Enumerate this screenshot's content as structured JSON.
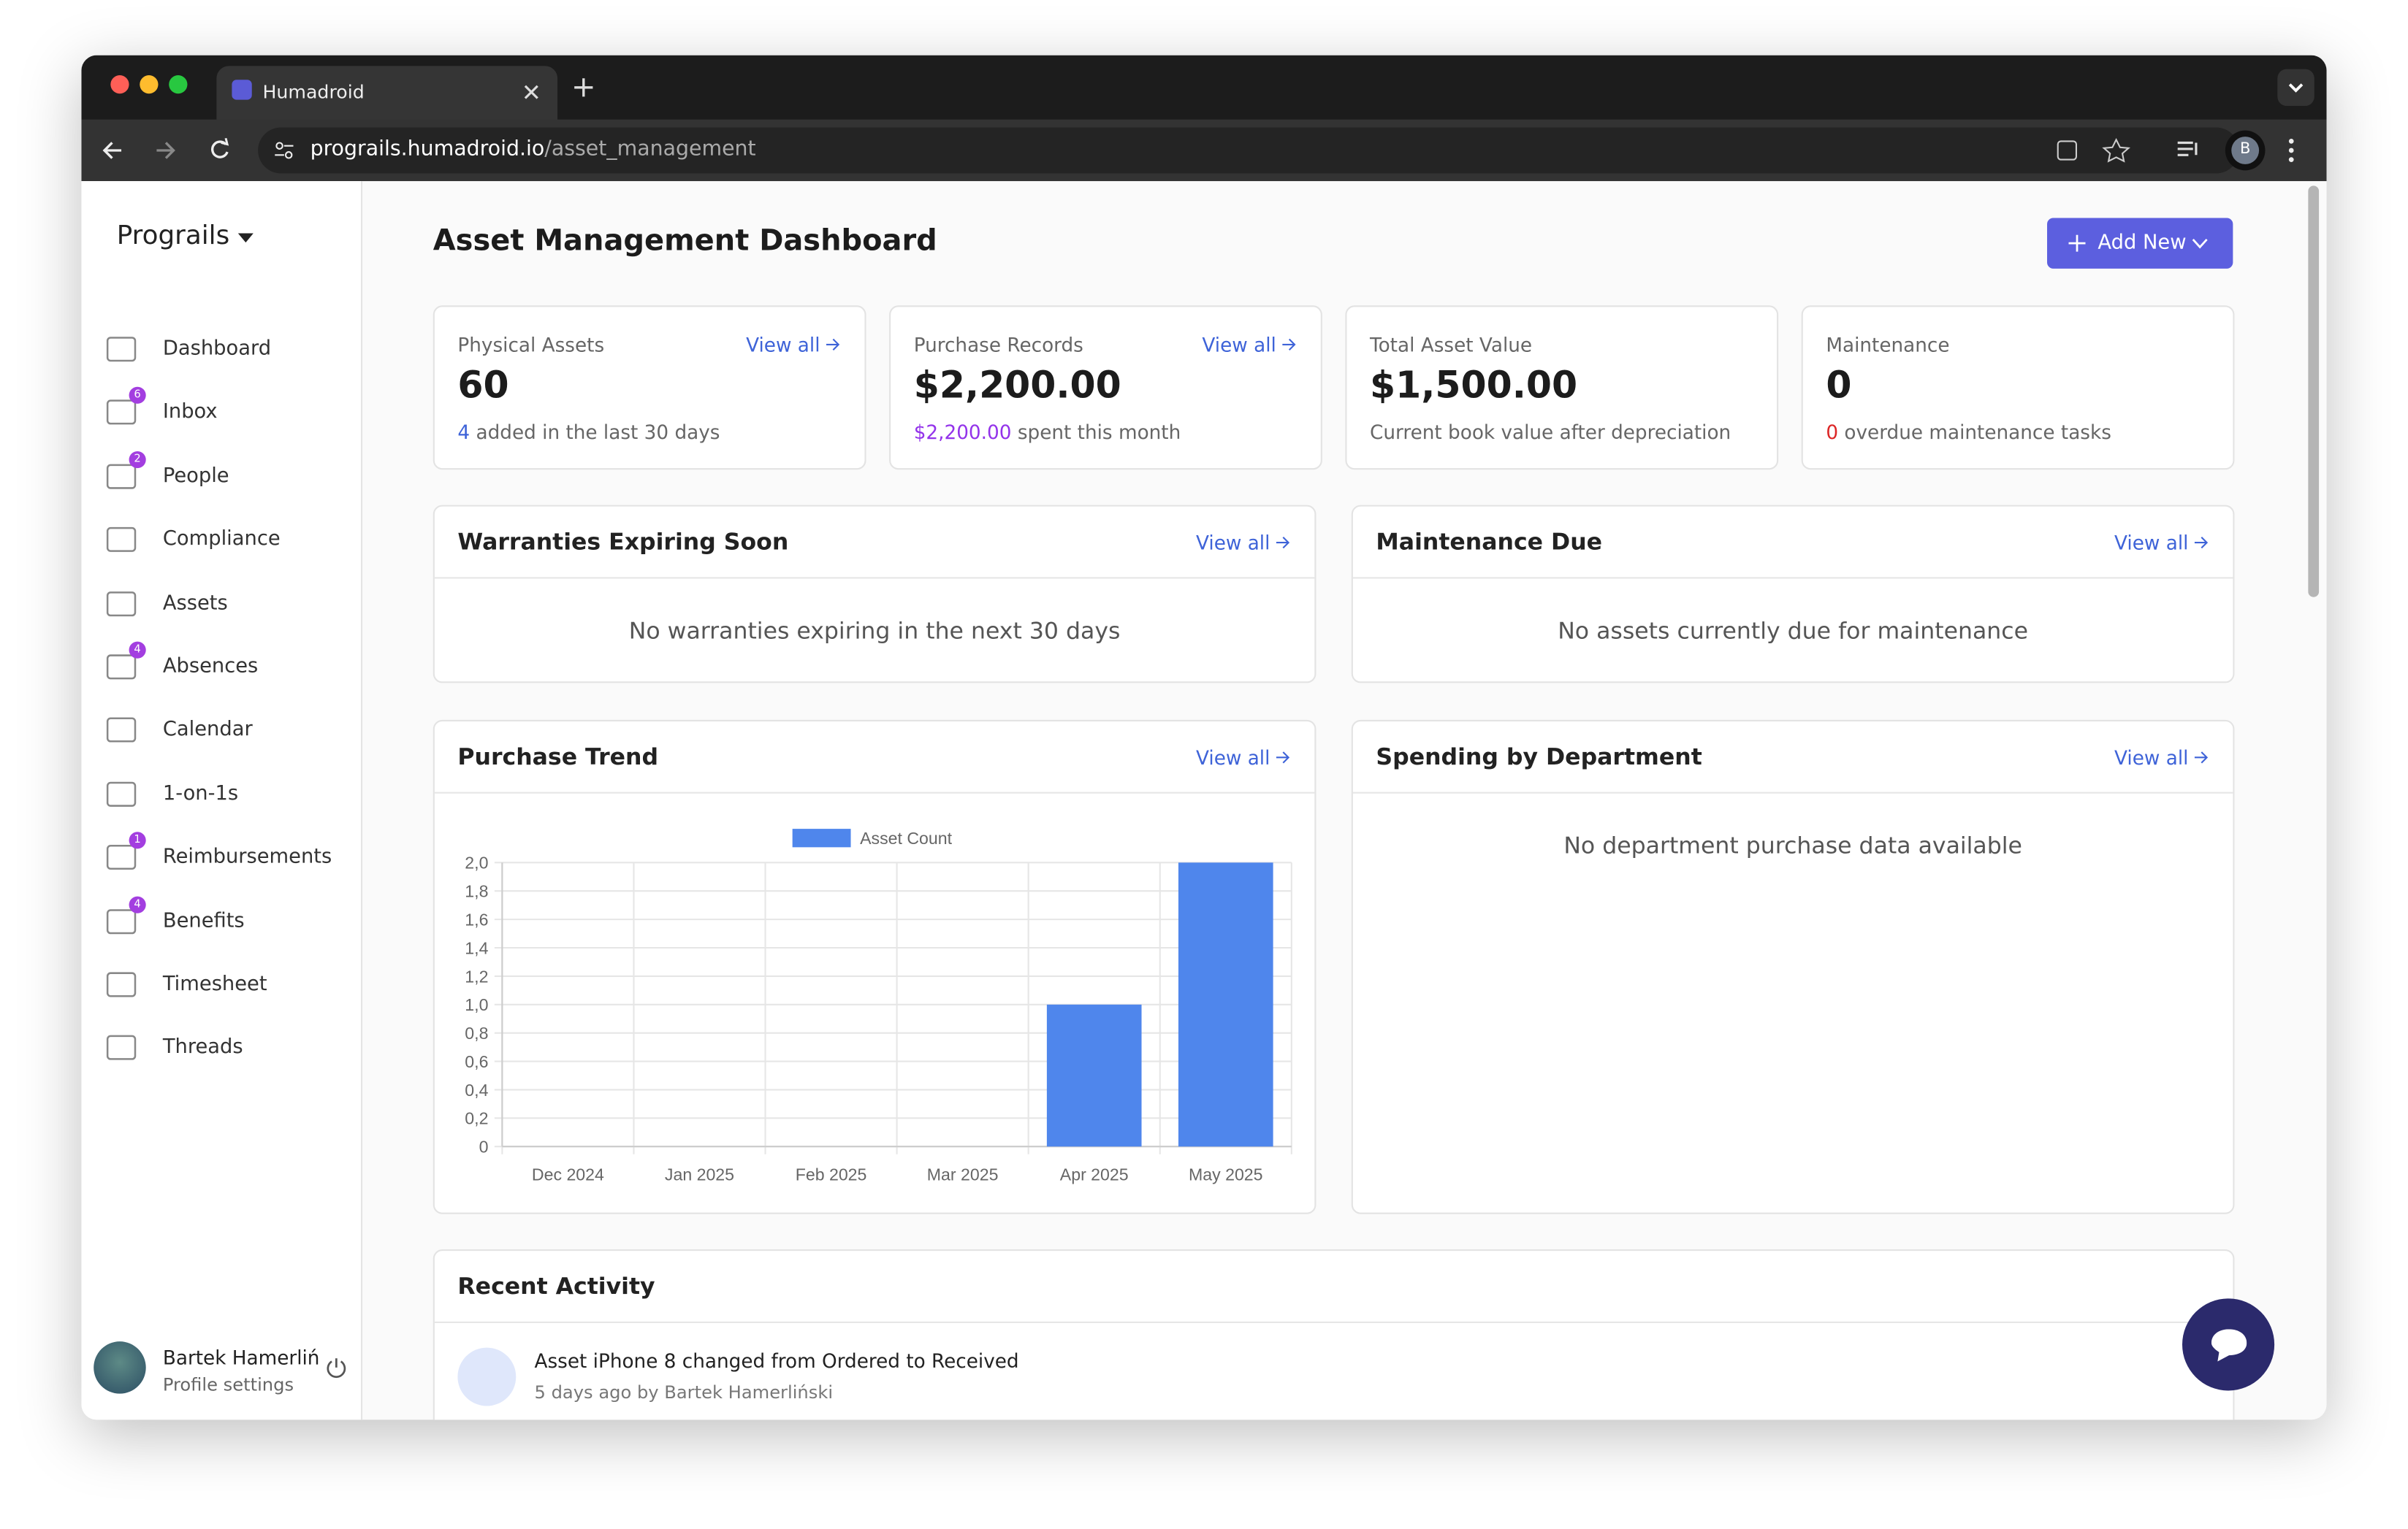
{
  "browser": {
    "tab_title": "Humadroid",
    "url_host": "prograils.humadroid.io",
    "url_path": "/asset_management",
    "profile_initial": "B"
  },
  "sidebar": {
    "brand": "Prograils",
    "nav": [
      {
        "label": "Dashboard"
      },
      {
        "label": "Inbox",
        "badge": 6
      },
      {
        "label": "People",
        "badge": 2
      },
      {
        "label": "Compliance"
      },
      {
        "label": "Assets"
      },
      {
        "label": "Absences",
        "badge": 4
      },
      {
        "label": "Calendar"
      },
      {
        "label": "1-on-1s"
      },
      {
        "label": "Reimbursements",
        "badge": 1
      },
      {
        "label": "Benefits",
        "badge": 4
      },
      {
        "label": "Timesheet"
      },
      {
        "label": "Threads"
      }
    ],
    "user": {
      "name": "Bartek Hamerliński",
      "link": "Profile settings"
    }
  },
  "header": {
    "title": "Asset Management Dashboard",
    "button": "Add New"
  },
  "stats": [
    {
      "label": "Physical Assets",
      "link": "View all",
      "value": 60,
      "note_value": 4,
      "note_text": "added in the last 30 days"
    },
    {
      "label": "Purchase Records",
      "link": "View all",
      "value": "$2,200.00",
      "note_value": "$2,200.00",
      "note_text": "spent this month"
    },
    {
      "label": "Total Asset Value",
      "value": "$1,500.00",
      "note_text": "Current book value after depreciation"
    },
    {
      "label": "Maintenance",
      "value": 0,
      "note_value": 0,
      "note_text": "overdue maintenance tasks"
    }
  ],
  "panels": {
    "warranties": {
      "title": "Warranties Expiring Soon",
      "link": "View all",
      "empty": "No warranties expiring in the next 30 days"
    },
    "maintenance": {
      "title": "Maintenance Due",
      "link": "View all",
      "empty": "No assets currently due for maintenance"
    },
    "purchase_trend": {
      "link": "View all"
    },
    "spending": {
      "title": "Spending by Department",
      "link": "View all",
      "empty": "No department purchase data available"
    }
  },
  "chart_data": {
    "type": "bar",
    "title": "Purchase Trend",
    "categories": [
      "Dec 2024",
      "Jan 2025",
      "Feb 2025",
      "Mar 2025",
      "Apr 2025",
      "May 2025"
    ],
    "series": [
      {
        "name": "Asset Count",
        "color": "#4f86ec",
        "values": [
          0,
          0,
          0,
          0,
          1,
          2
        ]
      }
    ],
    "ylim": [
      0,
      2
    ],
    "yticks": [
      0,
      {
        "value": 0.2,
        "label": "0,2"
      },
      {
        "value": 0.4,
        "label": "0,4"
      },
      {
        "value": 0.6,
        "label": "0,6"
      },
      {
        "value": 0.8,
        "label": "0,8"
      },
      {
        "value": 1,
        "label": "1,0"
      },
      {
        "value": 1.2,
        "label": "1,2"
      },
      {
        "value": 1.4,
        "label": "1,4"
      },
      {
        "value": 1.6,
        "label": "1,6"
      },
      {
        "value": 1.8,
        "label": "1,8"
      },
      {
        "value": 2,
        "label": "2,0"
      }
    ],
    "grid": true,
    "legend": "top"
  },
  "recent_activity": {
    "title": "Recent Activity",
    "items": [
      {
        "text": "Asset iPhone 8 changed from Ordered to Received",
        "meta": "5 days ago by Bartek Hamerliński"
      }
    ]
  }
}
